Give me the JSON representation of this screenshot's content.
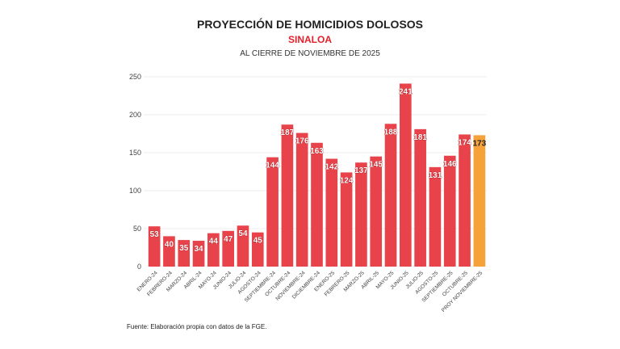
{
  "chart_data": {
    "type": "bar",
    "title": "PROYECCIÓN DE HOMICIDIOS DOLOSOS",
    "subtitle": "SINALOA",
    "subtitle2": "AL CIERRE DE NOVIEMBRE DE 2025",
    "categories": [
      "ENERO-24",
      "FEBRERO-24",
      "MARZO-24",
      "ABRIL-24",
      "MAYO-24",
      "JUNIO-24",
      "JULIO-24",
      "AGOSTO-24",
      "SEPTIEMBRE-24",
      "OCTUBRE-24",
      "NOVIEMBRE-24",
      "DICIEMBRE-24",
      "ENERO-25",
      "FEBRERO-25",
      "MARZO-25",
      "ABRIL-25",
      "MAYO-25",
      "JUNIO-25",
      "JULIO-25",
      "AGOSTO-25",
      "SEPTIEMBRE-25",
      "OCTUBRE-25",
      "PROY NOVIEMBRE-25"
    ],
    "values": [
      53,
      40,
      35,
      34,
      44,
      47,
      54,
      45,
      144,
      187,
      176,
      163,
      142,
      124,
      137,
      145,
      188,
      241,
      181,
      131,
      146,
      174,
      173
    ],
    "yticks": [
      0,
      50,
      100,
      150,
      200,
      250
    ],
    "ylim": [
      0,
      250
    ],
    "grid": true,
    "colors": {
      "actual": "#e8434a",
      "projection": "#f7a13a",
      "label_outline": "#9c1c22"
    }
  },
  "source": "Fuente: Elaboración propia con datos de la FGE."
}
